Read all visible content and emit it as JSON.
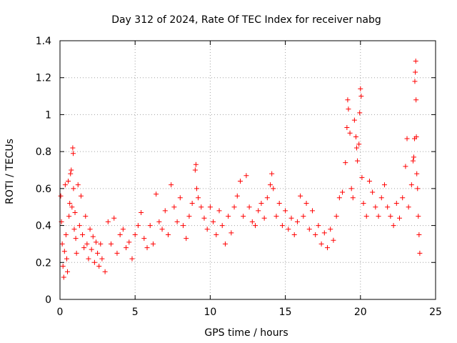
{
  "chart_data": {
    "type": "scatter",
    "title": "Day 312 of 2024, Rate Of TEC Index for receiver nabg",
    "xlabel": "GPS time / hours",
    "ylabel": "ROTI / TECUs",
    "xlim": [
      0,
      25
    ],
    "ylim": [
      0,
      1.4
    ],
    "x_ticks": [
      0,
      5,
      10,
      15,
      20,
      25
    ],
    "x_tick_labels": [
      "0",
      "5",
      "10",
      "15",
      "20",
      "25"
    ],
    "y_ticks": [
      0,
      0.2,
      0.4,
      0.6,
      0.8,
      1.0,
      1.2,
      1.4
    ],
    "y_tick_labels": [
      "0",
      "0.2",
      "0.4",
      "0.6",
      "0.8",
      "1",
      "1.2",
      "1.4"
    ],
    "grid": true,
    "marker": "+",
    "series": [
      {
        "name": "ROTI",
        "color": "#ff0000",
        "points": [
          [
            0.05,
            0.56
          ],
          [
            0.1,
            0.42
          ],
          [
            0.15,
            0.3
          ],
          [
            0.2,
            0.18
          ],
          [
            0.25,
            0.12
          ],
          [
            0.3,
            0.26
          ],
          [
            0.35,
            0.62
          ],
          [
            0.4,
            0.35
          ],
          [
            0.45,
            0.22
          ],
          [
            0.5,
            0.15
          ],
          [
            0.55,
            0.64
          ],
          [
            0.6,
            0.45
          ],
          [
            0.65,
            0.52
          ],
          [
            0.7,
            0.68
          ],
          [
            0.75,
            0.7
          ],
          [
            0.8,
            0.5
          ],
          [
            0.85,
            0.82
          ],
          [
            0.88,
            0.79
          ],
          [
            0.9,
            0.6
          ],
          [
            0.95,
            0.38
          ],
          [
            1.0,
            0.47
          ],
          [
            1.05,
            0.33
          ],
          [
            1.1,
            0.25
          ],
          [
            1.2,
            0.62
          ],
          [
            1.3,
            0.4
          ],
          [
            1.4,
            0.56
          ],
          [
            1.5,
            0.35
          ],
          [
            1.6,
            0.28
          ],
          [
            1.7,
            0.45
          ],
          [
            1.8,
            0.3
          ],
          [
            1.9,
            0.22
          ],
          [
            2.0,
            0.38
          ],
          [
            2.1,
            0.27
          ],
          [
            2.2,
            0.34
          ],
          [
            2.3,
            0.2
          ],
          [
            2.4,
            0.31
          ],
          [
            2.5,
            0.25
          ],
          [
            2.6,
            0.18
          ],
          [
            2.7,
            0.3
          ],
          [
            2.8,
            0.22
          ],
          [
            3.0,
            0.15
          ],
          [
            3.2,
            0.42
          ],
          [
            3.4,
            0.3
          ],
          [
            3.6,
            0.44
          ],
          [
            3.8,
            0.25
          ],
          [
            4.0,
            0.35
          ],
          [
            4.2,
            0.38
          ],
          [
            4.4,
            0.28
          ],
          [
            4.6,
            0.31
          ],
          [
            4.8,
            0.22
          ],
          [
            5.0,
            0.35
          ],
          [
            5.2,
            0.4
          ],
          [
            5.4,
            0.47
          ],
          [
            5.6,
            0.33
          ],
          [
            5.8,
            0.28
          ],
          [
            6.0,
            0.4
          ],
          [
            6.2,
            0.3
          ],
          [
            6.4,
            0.57
          ],
          [
            6.6,
            0.42
          ],
          [
            6.8,
            0.38
          ],
          [
            7.0,
            0.48
          ],
          [
            7.2,
            0.35
          ],
          [
            7.4,
            0.62
          ],
          [
            7.6,
            0.5
          ],
          [
            7.8,
            0.42
          ],
          [
            8.0,
            0.55
          ],
          [
            8.2,
            0.4
          ],
          [
            8.4,
            0.33
          ],
          [
            8.6,
            0.45
          ],
          [
            8.8,
            0.52
          ],
          [
            9.0,
            0.7
          ],
          [
            9.05,
            0.73
          ],
          [
            9.1,
            0.6
          ],
          [
            9.2,
            0.55
          ],
          [
            9.4,
            0.5
          ],
          [
            9.6,
            0.44
          ],
          [
            9.8,
            0.38
          ],
          [
            10.0,
            0.5
          ],
          [
            10.2,
            0.42
          ],
          [
            10.4,
            0.35
          ],
          [
            10.6,
            0.48
          ],
          [
            10.8,
            0.4
          ],
          [
            11.0,
            0.3
          ],
          [
            11.2,
            0.45
          ],
          [
            11.4,
            0.36
          ],
          [
            11.6,
            0.5
          ],
          [
            11.8,
            0.56
          ],
          [
            12.0,
            0.64
          ],
          [
            12.2,
            0.45
          ],
          [
            12.4,
            0.67
          ],
          [
            12.6,
            0.5
          ],
          [
            12.8,
            0.42
          ],
          [
            13.0,
            0.4
          ],
          [
            13.2,
            0.48
          ],
          [
            13.4,
            0.52
          ],
          [
            13.6,
            0.44
          ],
          [
            13.8,
            0.55
          ],
          [
            14.0,
            0.62
          ],
          [
            14.1,
            0.68
          ],
          [
            14.2,
            0.6
          ],
          [
            14.4,
            0.45
          ],
          [
            14.6,
            0.52
          ],
          [
            14.8,
            0.4
          ],
          [
            15.0,
            0.48
          ],
          [
            15.2,
            0.38
          ],
          [
            15.4,
            0.44
          ],
          [
            15.6,
            0.35
          ],
          [
            15.8,
            0.42
          ],
          [
            16.0,
            0.56
          ],
          [
            16.2,
            0.45
          ],
          [
            16.4,
            0.52
          ],
          [
            16.6,
            0.38
          ],
          [
            16.8,
            0.48
          ],
          [
            17.0,
            0.35
          ],
          [
            17.2,
            0.4
          ],
          [
            17.4,
            0.3
          ],
          [
            17.6,
            0.36
          ],
          [
            17.8,
            0.28
          ],
          [
            18.0,
            0.38
          ],
          [
            18.2,
            0.32
          ],
          [
            18.4,
            0.45
          ],
          [
            18.6,
            0.55
          ],
          [
            18.8,
            0.58
          ],
          [
            19.0,
            0.74
          ],
          [
            19.1,
            0.93
          ],
          [
            19.15,
            1.08
          ],
          [
            19.2,
            1.03
          ],
          [
            19.3,
            0.9
          ],
          [
            19.4,
            0.6
          ],
          [
            19.5,
            0.55
          ],
          [
            19.6,
            0.97
          ],
          [
            19.7,
            0.88
          ],
          [
            19.75,
            0.82
          ],
          [
            19.8,
            0.75
          ],
          [
            19.9,
            0.84
          ],
          [
            19.95,
            1.01
          ],
          [
            20.0,
            1.14
          ],
          [
            20.05,
            1.1
          ],
          [
            20.1,
            0.66
          ],
          [
            20.2,
            0.52
          ],
          [
            20.4,
            0.45
          ],
          [
            20.6,
            0.64
          ],
          [
            20.8,
            0.58
          ],
          [
            21.0,
            0.5
          ],
          [
            21.2,
            0.45
          ],
          [
            21.4,
            0.55
          ],
          [
            21.6,
            0.62
          ],
          [
            21.8,
            0.5
          ],
          [
            22.0,
            0.45
          ],
          [
            22.2,
            0.4
          ],
          [
            22.4,
            0.52
          ],
          [
            22.6,
            0.44
          ],
          [
            22.8,
            0.55
          ],
          [
            23.0,
            0.72
          ],
          [
            23.1,
            0.87
          ],
          [
            23.2,
            0.5
          ],
          [
            23.4,
            0.62
          ],
          [
            23.5,
            0.75
          ],
          [
            23.55,
            0.77
          ],
          [
            23.6,
            0.87
          ],
          [
            23.62,
            1.18
          ],
          [
            23.65,
            1.23
          ],
          [
            23.68,
            1.29
          ],
          [
            23.7,
            1.08
          ],
          [
            23.72,
            0.88
          ],
          [
            23.75,
            0.68
          ],
          [
            23.8,
            0.6
          ],
          [
            23.85,
            0.45
          ],
          [
            23.9,
            0.35
          ],
          [
            23.95,
            0.25
          ]
        ]
      }
    ]
  }
}
